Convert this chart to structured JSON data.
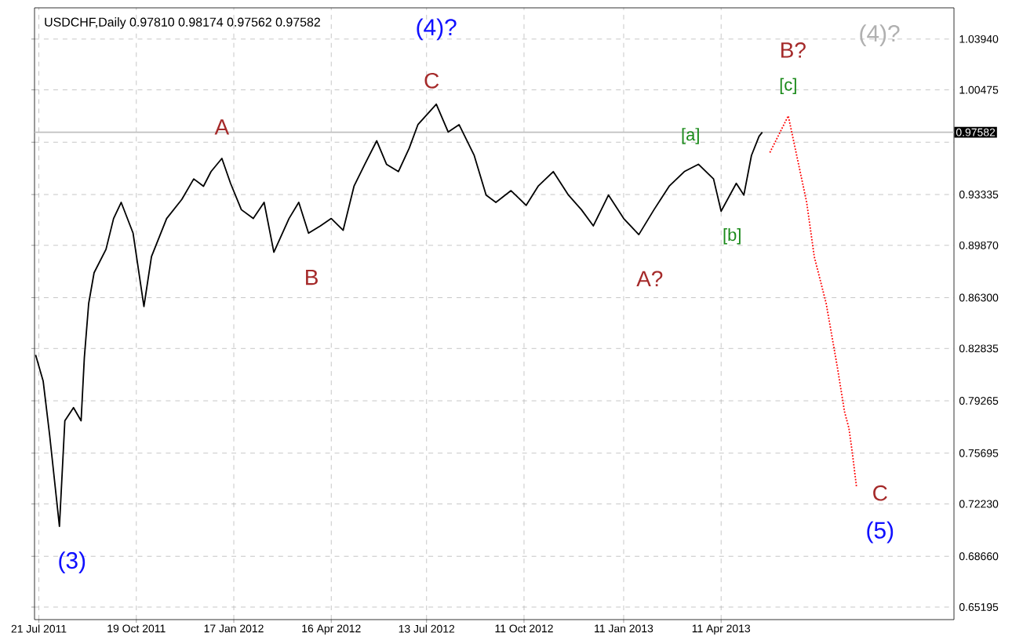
{
  "chart_data": {
    "type": "line",
    "title": "USDCHF,Daily  0.97810 0.98174 0.97562 0.97582",
    "xlim": [
      "2011-07-17",
      "2013-11-12"
    ],
    "ylim": [
      0.6434,
      1.0607
    ],
    "xticks": [
      {
        "value": "2011-07-21",
        "label": "21 Jul 2011"
      },
      {
        "value": "2011-10-19",
        "label": "19 Oct 2011"
      },
      {
        "value": "2012-01-17",
        "label": "17 Jan 2012"
      },
      {
        "value": "2012-04-16",
        "label": "16 Apr 2012"
      },
      {
        "value": "2012-07-13",
        "label": "13 Jul 2012"
      },
      {
        "value": "2012-10-11",
        "label": "11 Oct 2012"
      },
      {
        "value": "2013-01-11",
        "label": "11 Jan 2013"
      },
      {
        "value": "2013-04-11",
        "label": "11 Apr 2013"
      }
    ],
    "yticks": [
      {
        "value": 0.65195,
        "label": "0.65195"
      },
      {
        "value": 0.6866,
        "label": "0.68660"
      },
      {
        "value": 0.7223,
        "label": "0.72230"
      },
      {
        "value": 0.75695,
        "label": "0.75695"
      },
      {
        "value": 0.79265,
        "label": "0.79265"
      },
      {
        "value": 0.82835,
        "label": "0.82835"
      },
      {
        "value": 0.863,
        "label": "0.86300"
      },
      {
        "value": 0.8987,
        "label": "0.89870"
      },
      {
        "value": 0.93335,
        "label": "0.93335"
      },
      {
        "value": 0.96905,
        "label": null
      },
      {
        "value": 1.00475,
        "label": "1.00475"
      },
      {
        "value": 1.0394,
        "label": "1.03940"
      }
    ],
    "grid": true,
    "series": [
      {
        "color": "#000000",
        "line_style": "solid",
        "x": [
          "2011-07-18",
          "2011-07-25",
          "2011-07-31",
          "2011-08-09",
          "2011-08-14",
          "2011-08-22",
          "2011-08-29",
          "2011-09-01",
          "2011-09-05",
          "2011-09-10",
          "2011-09-21",
          "2011-09-28",
          "2011-10-05",
          "2011-10-16",
          "2011-10-26",
          "2011-11-02",
          "2011-11-16",
          "2011-11-30",
          "2011-12-11",
          "2011-12-20",
          "2011-12-27",
          "2012-01-06",
          "2012-01-14",
          "2012-01-24",
          "2012-02-04",
          "2012-02-14",
          "2012-02-23",
          "2012-03-08",
          "2012-03-17",
          "2012-03-26",
          "2012-04-06",
          "2012-04-16",
          "2012-04-27",
          "2012-05-07",
          "2012-05-17",
          "2012-05-28",
          "2012-06-06",
          "2012-06-17",
          "2012-06-27",
          "2012-07-05",
          "2012-07-22",
          "2012-08-02",
          "2012-08-12",
          "2012-08-26",
          "2012-09-06",
          "2012-09-15",
          "2012-09-29",
          "2012-10-13",
          "2012-10-24",
          "2012-11-07",
          "2012-11-21",
          "2012-12-03",
          "2012-12-14",
          "2012-12-28",
          "2013-01-11",
          "2013-01-25",
          "2013-02-08",
          "2013-02-22",
          "2013-03-08",
          "2013-03-21",
          "2013-04-04",
          "2013-04-11",
          "2013-04-25",
          "2013-05-02",
          "2013-05-09",
          "2013-05-16",
          "2013-05-19"
        ],
        "values": [
          0.824,
          0.806,
          0.769,
          0.707,
          0.779,
          0.788,
          0.779,
          0.822,
          0.859,
          0.88,
          0.896,
          0.917,
          0.928,
          0.907,
          0.857,
          0.891,
          0.917,
          0.93,
          0.944,
          0.939,
          0.949,
          0.958,
          0.941,
          0.923,
          0.917,
          0.928,
          0.894,
          0.917,
          0.928,
          0.907,
          0.912,
          0.917,
          0.909,
          0.939,
          0.954,
          0.97,
          0.954,
          0.949,
          0.965,
          0.981,
          0.995,
          0.976,
          0.981,
          0.96,
          0.933,
          0.928,
          0.936,
          0.926,
          0.939,
          0.949,
          0.933,
          0.923,
          0.912,
          0.933,
          0.917,
          0.906,
          0.923,
          0.939,
          0.949,
          0.954,
          0.944,
          0.922,
          0.941,
          0.933,
          0.96,
          0.973,
          0.97582
        ]
      },
      {
        "color": "#ff0000",
        "line_style": "dotted",
        "x": [
          "2013-05-26",
          "2013-06-12",
          "2013-06-29",
          "2013-07-06",
          "2013-07-17",
          "2013-07-27",
          "2013-08-03",
          "2013-08-07",
          "2013-08-10",
          "2013-08-14"
        ],
        "values": [
          0.962,
          0.987,
          0.928,
          0.891,
          0.859,
          0.817,
          0.785,
          0.774,
          0.758,
          0.734
        ]
      }
    ],
    "ref_lines": [
      {
        "axis": "y",
        "value": 0.97582,
        "label": "0.97582",
        "color": "#c0c0c0"
      }
    ],
    "annotations": [
      {
        "text": "(3)",
        "x": "2011-08-09",
        "y": 0.707
      },
      {
        "text": "A",
        "x": "2012-01-06",
        "y": 0.958
      },
      {
        "text": "B",
        "x": "2012-02-23",
        "y": 0.894
      },
      "(4)?",
      {
        "text": "C",
        "x": "2012-07-22",
        "y": 0.995
      },
      {
        "text": "A?",
        "x": "2013-01-25",
        "y": 0.906
      },
      {
        "text": "[a]",
        "x": "2013-03-21",
        "y": 0.954
      },
      {
        "text": "[b]",
        "x": "2013-04-11",
        "y": 0.922
      },
      {
        "text": "[c]",
        "x": "2013-06-12",
        "y": 0.987
      },
      {
        "text": "B?",
        "x": "2013-06-12",
        "y": 0.987
      },
      "(4)?",
      {
        "text": "C",
        "x": "2013-08-14",
        "y": 0.734
      },
      {
        "text": "(5)",
        "x": "2013-08-14",
        "y": 0.734
      }
    ]
  }
}
